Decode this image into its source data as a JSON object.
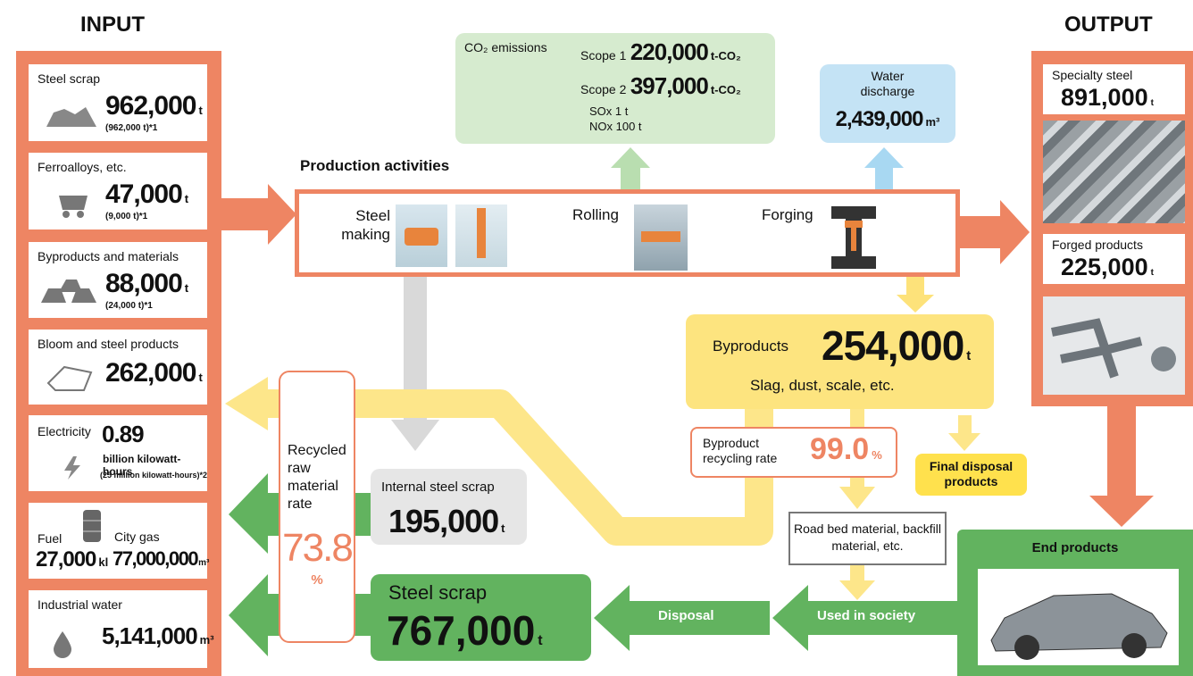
{
  "input": {
    "title": "INPUT",
    "items": [
      {
        "label": "Steel scrap",
        "value": "962,000",
        "unit": "t",
        "note": "(962,000 t)*1"
      },
      {
        "label": "Ferroalloys, etc.",
        "value": "47,000",
        "unit": "t",
        "note": "(9,000 t)*1"
      },
      {
        "label": "Byproducts and materials",
        "value": "88,000",
        "unit": "t",
        "note": "(24,000 t)*1"
      },
      {
        "label": "Bloom and steel products",
        "value": "262,000",
        "unit": "t"
      },
      {
        "label": "Electricity",
        "value": "0.89",
        "unit": "billion kilowatt-hours",
        "note": "(25 million kilowatt-hours)*2"
      },
      {
        "label": "Fuel",
        "value": "27,000",
        "unit": "kl",
        "label2": "City gas",
        "value2": "77,000,000",
        "unit2": "m³"
      },
      {
        "label": "Industrial water",
        "value": "5,141,000",
        "unit": "m³"
      }
    ]
  },
  "emissions": {
    "title": "CO₂ emissions",
    "scope1": {
      "label": "Scope 1",
      "value": "220,000",
      "unit": "t-CO₂"
    },
    "scope2": {
      "label": "Scope 2",
      "value": "397,000",
      "unit": "t-CO₂"
    },
    "sox": "SOx 1 t",
    "nox": "NOx 100 t"
  },
  "water_discharge": {
    "label": "Water discharge",
    "value": "2,439,000",
    "unit": "m³"
  },
  "production": {
    "title": "Production activities",
    "steps": [
      "Steel making",
      "Rolling",
      "Forging"
    ]
  },
  "output": {
    "title": "OUTPUT",
    "items": [
      {
        "label": "Specialty steel",
        "value": "891,000",
        "unit": "t"
      },
      {
        "label": "Forged products",
        "value": "225,000",
        "unit": "t"
      }
    ]
  },
  "byproducts": {
    "label": "Byproducts",
    "value": "254,000",
    "unit": "t",
    "detail": "Slag, dust, scale, etc."
  },
  "byproduct_recycling": {
    "label": "Byproduct recycling rate",
    "value": "99.0",
    "unit": "%"
  },
  "final_disposal": "Final disposal products",
  "road_bed": "Road bed material, backfill material, etc.",
  "used_in_society": "Used in society",
  "disposal": "Disposal",
  "end_products": "End products",
  "recycled_rate": {
    "label": "Recycled raw material rate",
    "value": "73.8",
    "unit": "%"
  },
  "internal_scrap": {
    "label": "Internal steel scrap",
    "value": "195,000",
    "unit": "t"
  },
  "steel_scrap": {
    "label": "Steel scrap",
    "value": "767,000",
    "unit": "t"
  }
}
